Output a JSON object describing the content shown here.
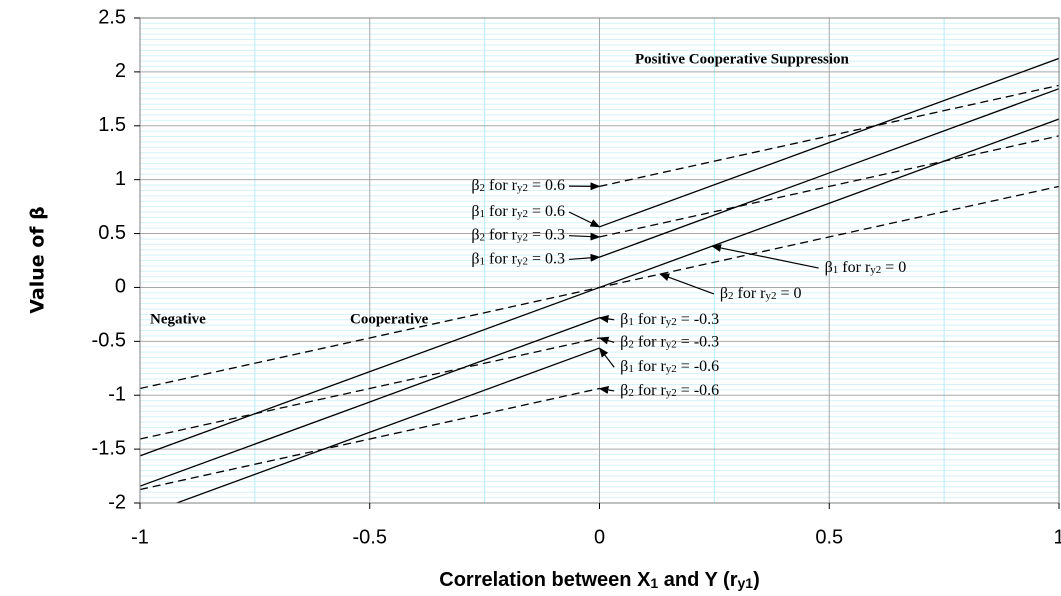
{
  "chart_data": {
    "type": "line",
    "xlabel_parts": [
      "Correlation between X",
      "1",
      " and Y (r",
      "y1",
      ")"
    ],
    "ylabel": "Value of β",
    "x": [
      -1,
      -0.5,
      0,
      0.5,
      1
    ],
    "xlim": [
      -1,
      1
    ],
    "xticks": [
      -1,
      -0.5,
      0,
      0.5,
      1
    ],
    "ylim": [
      -2,
      2.5
    ],
    "yticks": [
      -2,
      -1.5,
      -1,
      -0.5,
      0,
      0.5,
      1,
      1.5,
      2,
      2.5
    ],
    "grid": true,
    "series": [
      {
        "color": "#000000",
        "dash": false,
        "values": [
          null,
          null,
          0.5625,
          1.34375,
          2.125
        ]
      },
      {
        "color": "#000000",
        "dash": true,
        "values": [
          null,
          null,
          0.9375,
          1.40625,
          1.875
        ]
      },
      {
        "color": "#000000",
        "dash": false,
        "values": [
          null,
          null,
          0.28125,
          1.0625,
          1.84375
        ]
      },
      {
        "color": "#000000",
        "dash": true,
        "values": [
          null,
          null,
          0.46875,
          0.9375,
          1.40625
        ]
      },
      {
        "color": "#000000",
        "dash": false,
        "values": [
          -1.5625,
          -0.78125,
          0,
          0.78125,
          1.5625
        ]
      },
      {
        "color": "#000000",
        "dash": true,
        "values": [
          -0.9375,
          -0.46875,
          0,
          0.46875,
          0.9375
        ]
      },
      {
        "color": "#000000",
        "dash": false,
        "values": [
          -1.84375,
          -1.0625,
          -0.28125,
          null,
          null
        ]
      },
      {
        "color": "#000000",
        "dash": true,
        "values": [
          -1.40625,
          -0.9375,
          -0.46875,
          null,
          null
        ]
      },
      {
        "color": "#000000",
        "dash": false,
        "values": [
          -2.125,
          -1.34375,
          -0.5625,
          null,
          null
        ]
      },
      {
        "color": "#000000",
        "dash": true,
        "values": [
          -1.875,
          -1.40625,
          -0.9375,
          null,
          null
        ]
      }
    ],
    "annotations": [
      {
        "parts": [
          "β",
          "2",
          " for  r",
          "y2",
          " = 0.6"
        ],
        "align": "end",
        "xytext": [
          -0.075,
          0.94
        ],
        "xy": [
          0,
          0.9375
        ]
      },
      {
        "parts": [
          "β",
          "1",
          " for  r",
          "y2",
          " = 0.6"
        ],
        "align": "end",
        "xytext": [
          -0.075,
          0.7
        ],
        "xy": [
          0,
          0.5625
        ]
      },
      {
        "parts": [
          "β",
          "2",
          " for  r",
          "y2",
          " = 0.3"
        ],
        "align": "end",
        "xytext": [
          -0.075,
          0.48
        ],
        "xy": [
          0,
          0.46875
        ]
      },
      {
        "parts": [
          "β",
          "1",
          " for  r",
          "y2",
          " = 0.3"
        ],
        "align": "end",
        "xytext": [
          -0.075,
          0.26
        ],
        "xy": [
          0,
          0.28125
        ]
      },
      {
        "parts": [
          "β",
          "1",
          " for  r",
          "y2",
          " = 0"
        ],
        "align": "start",
        "xytext": [
          0.49,
          0.18
        ],
        "xy": [
          0.245,
          0.383
        ]
      },
      {
        "parts": [
          "β",
          "2",
          " for  r",
          "y2",
          " = 0"
        ],
        "align": "start",
        "xytext": [
          0.262,
          -0.06
        ],
        "xy": [
          0.132,
          0.124
        ]
      },
      {
        "parts": [
          "β",
          "1",
          " for  r",
          "y2",
          " = -0.3"
        ],
        "align": "start",
        "xytext": [
          0.045,
          -0.3
        ],
        "xy": [
          0,
          -0.28125
        ]
      },
      {
        "parts": [
          "β",
          "2",
          " for  r",
          "y2",
          " = -0.3"
        ],
        "align": "start",
        "xytext": [
          0.045,
          -0.51
        ],
        "xy": [
          0,
          -0.46875
        ]
      },
      {
        "parts": [
          "β",
          "1",
          " for  r",
          "y2",
          " = -0.6"
        ],
        "align": "start",
        "xytext": [
          0.045,
          -0.74
        ],
        "xy": [
          0,
          -0.5625
        ]
      },
      {
        "parts": [
          "β",
          "2",
          " for  r",
          "y2",
          " = -0.6"
        ],
        "align": "start",
        "xytext": [
          0.045,
          -0.96
        ],
        "xy": [
          0,
          -0.9375
        ]
      }
    ],
    "notes": [
      "Positive Cooperative Suppression",
      "Negative",
      "Cooperative"
    ]
  }
}
